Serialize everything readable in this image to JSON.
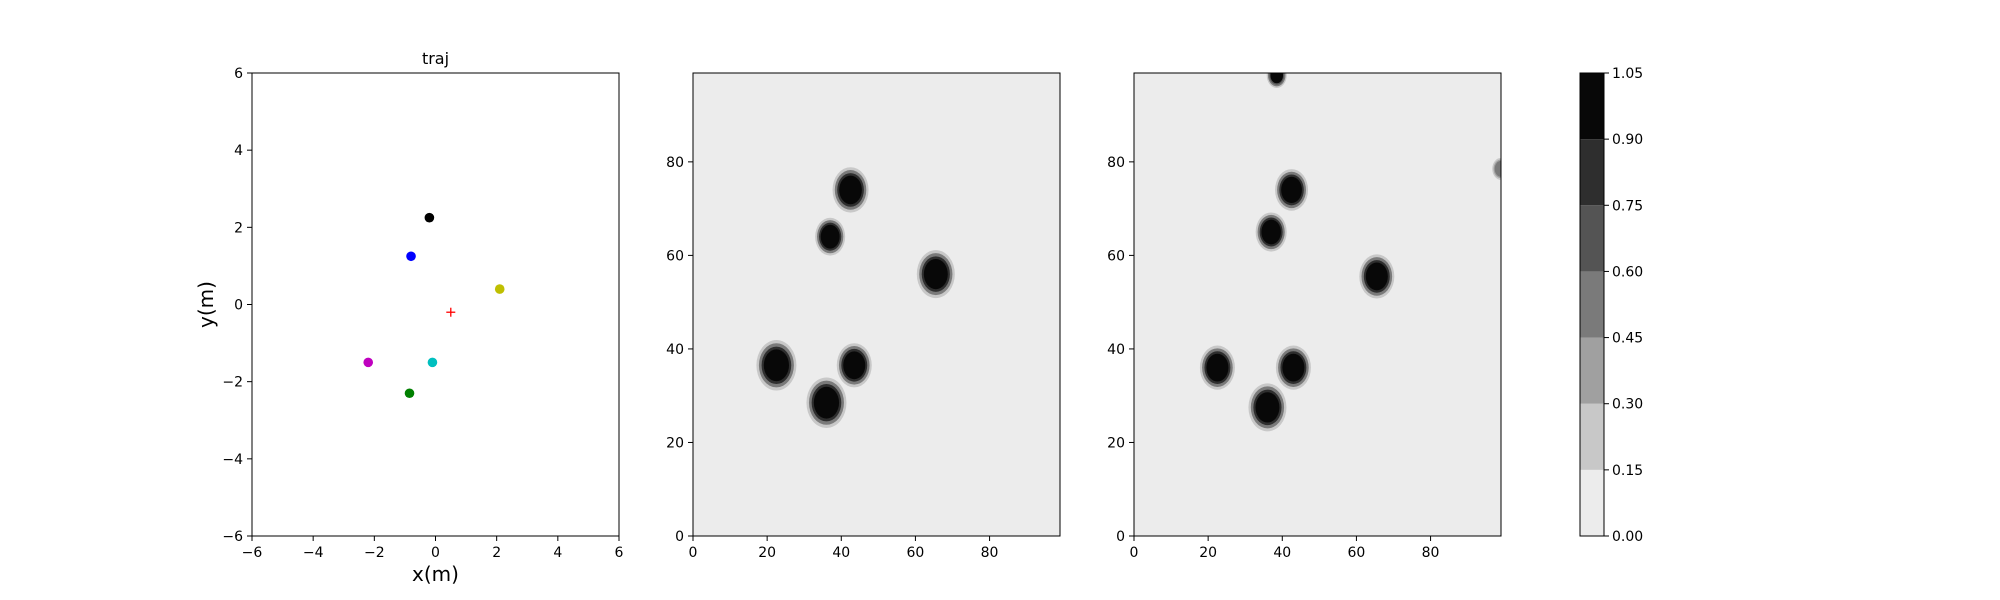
{
  "chart_data": [
    {
      "type": "scatter",
      "title": "traj",
      "xlabel": "x(m)",
      "ylabel": "y(m)",
      "xlim": [
        -6,
        6
      ],
      "ylim": [
        -6,
        6
      ],
      "xticks": [
        -6,
        -4,
        -2,
        0,
        2,
        4,
        6
      ],
      "yticks": [
        -6,
        -4,
        -2,
        0,
        2,
        4,
        6
      ],
      "grid": false,
      "points": [
        {
          "x": -0.2,
          "y": 2.25,
          "color": "#000000",
          "marker": "dot"
        },
        {
          "x": -0.8,
          "y": 1.25,
          "color": "#0000ff",
          "marker": "dot"
        },
        {
          "x": 2.1,
          "y": 0.4,
          "color": "#bfbf00",
          "marker": "dot"
        },
        {
          "x": 0.5,
          "y": -0.2,
          "color": "#ff0000",
          "marker": "plus"
        },
        {
          "x": -2.2,
          "y": -1.5,
          "color": "#bf00bf",
          "marker": "dot"
        },
        {
          "x": -0.1,
          "y": -1.5,
          "color": "#00bfbf",
          "marker": "dot"
        },
        {
          "x": -0.85,
          "y": -2.3,
          "color": "#008000",
          "marker": "dot"
        }
      ]
    },
    {
      "type": "heatmap",
      "title": "",
      "xlim": [
        0,
        99
      ],
      "ylim": [
        0,
        99
      ],
      "xticks": [
        0,
        20,
        40,
        60,
        80
      ],
      "yticks": [
        0,
        20,
        40,
        60,
        80
      ],
      "background_value": 0.03,
      "blobs": [
        {
          "cx": 42.5,
          "cy": 74,
          "r": 3.6,
          "value": 1.0
        },
        {
          "cx": 37,
          "cy": 64,
          "r": 3.0,
          "value": 1.0
        },
        {
          "cx": 65.5,
          "cy": 56,
          "r": 3.8,
          "value": 1.0
        },
        {
          "cx": 22.5,
          "cy": 36.5,
          "r": 4.0,
          "value": 1.0
        },
        {
          "cx": 43.5,
          "cy": 36.5,
          "r": 3.5,
          "value": 1.0
        },
        {
          "cx": 36,
          "cy": 28.5,
          "r": 4.0,
          "value": 1.0
        }
      ]
    },
    {
      "type": "heatmap",
      "title": "",
      "xlim": [
        0,
        99
      ],
      "ylim": [
        0,
        99
      ],
      "xticks": [
        0,
        20,
        40,
        60,
        80
      ],
      "yticks": [
        0,
        20,
        40,
        60,
        80
      ],
      "background_value": 0.03,
      "blobs": [
        {
          "cx": 38.5,
          "cy": 98.5,
          "r": 2.0,
          "value": 0.9
        },
        {
          "cx": 42.5,
          "cy": 74,
          "r": 3.3,
          "value": 1.0
        },
        {
          "cx": 37,
          "cy": 65,
          "r": 3.1,
          "value": 1.0
        },
        {
          "cx": 65.5,
          "cy": 55.5,
          "r": 3.5,
          "value": 1.0
        },
        {
          "cx": 22.5,
          "cy": 36,
          "r": 3.5,
          "value": 1.0
        },
        {
          "cx": 43,
          "cy": 36,
          "r": 3.5,
          "value": 1.0
        },
        {
          "cx": 36,
          "cy": 27.5,
          "r": 3.8,
          "value": 1.0
        },
        {
          "cx": 99,
          "cy": 78.5,
          "r": 2.0,
          "value": 0.45
        }
      ]
    }
  ],
  "colorbar": {
    "levels": [
      0.0,
      0.15,
      0.3,
      0.45,
      0.6,
      0.75,
      0.9,
      1.05
    ],
    "tick_labels": [
      "0.00",
      "0.15",
      "0.30",
      "0.45",
      "0.60",
      "0.75",
      "0.90",
      "1.05"
    ],
    "colors": [
      "#ececec",
      "#c8c8c8",
      "#a0a0a0",
      "#7a7a7a",
      "#545454",
      "#2e2e2e",
      "#080808"
    ]
  }
}
